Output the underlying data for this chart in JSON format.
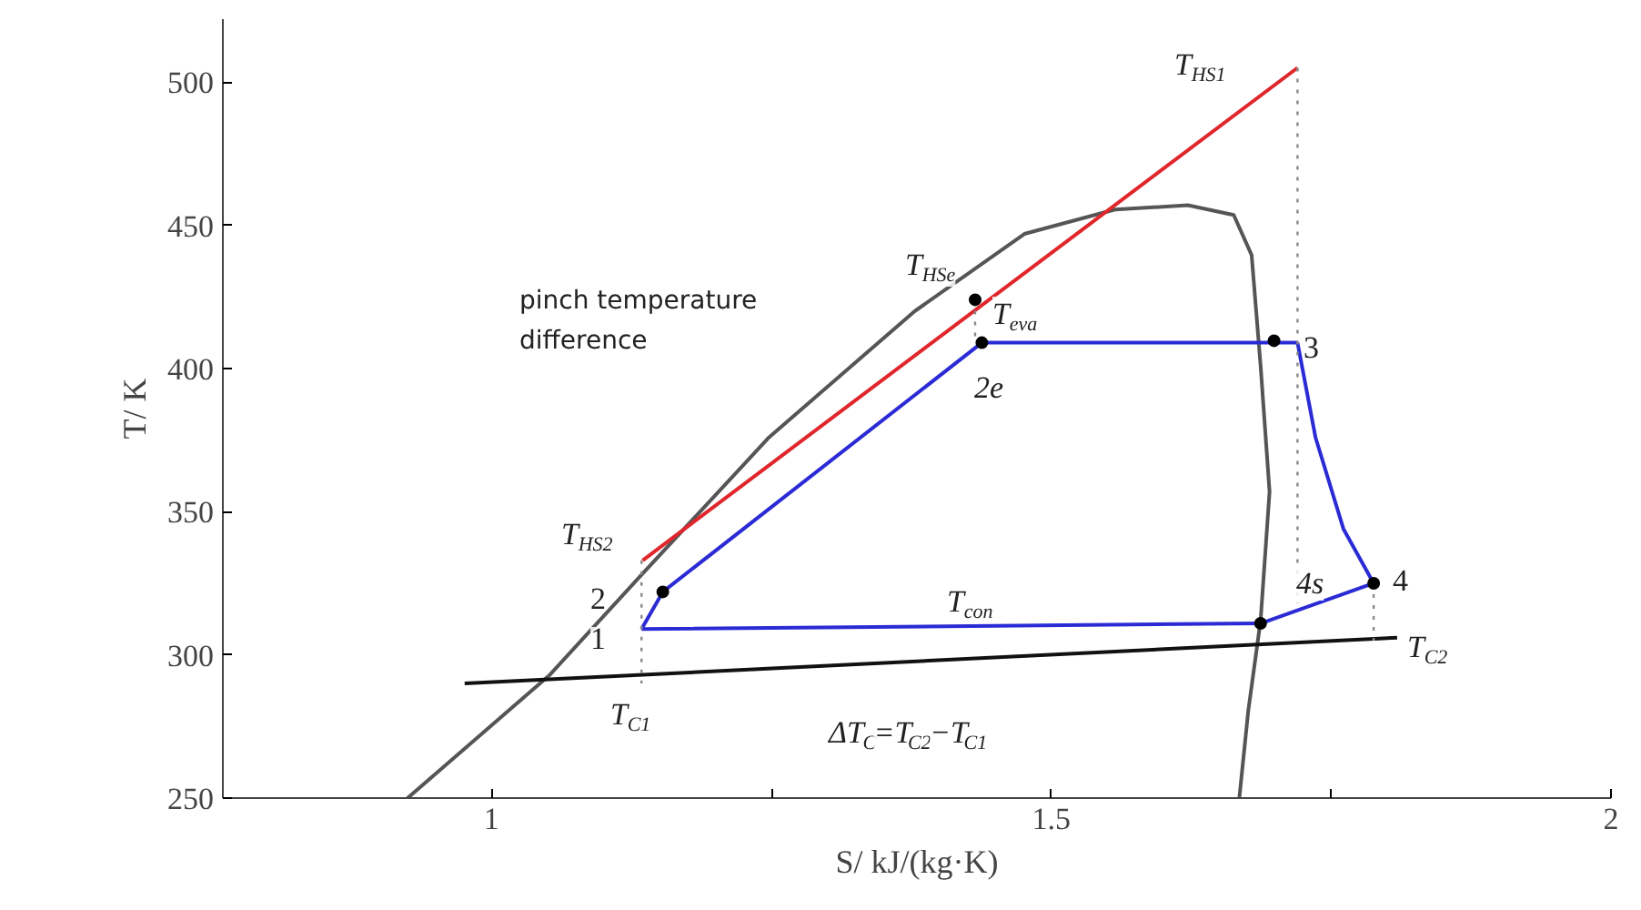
{
  "chart_data": {
    "type": "line",
    "xlabel": "S/ kJ/(kg·K)",
    "ylabel": "T/ K",
    "xlim": [
      0.76,
      2.0
    ],
    "ylim": [
      250,
      522
    ],
    "xticks": [
      1.0,
      {
        "value": 1.25,
        "label": null
      },
      1.5,
      {
        "value": 1.75,
        "label": null
      },
      2.0
    ],
    "yticks": [
      250,
      300,
      350,
      400,
      450,
      500
    ],
    "grid": false,
    "series": [
      {
        "type": "line",
        "color": "#555555",
        "x": [
          0.925,
          1.052,
          1.134,
          1.248,
          1.378,
          1.476,
          1.557,
          1.622,
          1.663,
          1.679,
          1.687,
          1.695,
          1.687,
          1.676,
          1.668
        ],
        "values": [
          250,
          293,
          328,
          376,
          420,
          447,
          455.5,
          457,
          453.6,
          439.6,
          401,
          357,
          312,
          280.5,
          250
        ]
      },
      {
        "type": "line",
        "color": "#e0262b",
        "x": [
          1.135,
          1.72
        ],
        "values": [
          333,
          505
        ]
      },
      {
        "type": "line",
        "color": "#111111",
        "x": [
          0.976,
          1.809
        ],
        "values": [
          290,
          306
        ]
      },
      {
        "type": "line",
        "color": "#2b2bd6",
        "x": [
          1.134,
          1.153,
          1.438,
          1.72
        ],
        "values": [
          309,
          322,
          409,
          409
        ]
      },
      {
        "type": "line",
        "color": "#2b2bd6",
        "x": [
          1.72,
          1.736,
          1.761,
          1.788
        ],
        "values": [
          409,
          376,
          344,
          325
        ]
      },
      {
        "type": "line",
        "color": "#2b2bd6",
        "x": [
          1.134,
          1.687,
          1.788
        ],
        "values": [
          309,
          311,
          325
        ]
      },
      {
        "type": "line",
        "color": "#888888",
        "line_style": "dotted",
        "x": [
          1.72,
          1.72
        ],
        "values": [
          505,
          318
        ]
      },
      {
        "type": "line",
        "color": "#888888",
        "line_style": "dotted",
        "x": [
          1.134,
          1.134
        ],
        "values": [
          333,
          290
        ]
      },
      {
        "type": "line",
        "color": "#888888",
        "line_style": "dotted",
        "x": [
          1.788,
          1.788
        ],
        "values": [
          325,
          305
        ]
      },
      {
        "type": "line",
        "color": "#888888",
        "line_style": "dotted",
        "x": [
          1.432,
          1.432
        ],
        "values": [
          424,
          409
        ]
      },
      {
        "type": "scatter",
        "marker": "circle",
        "color": "#000000",
        "x": [
          1.153,
          1.438,
          1.699,
          1.788,
          1.687,
          1.432
        ],
        "values": [
          322,
          409,
          409.7,
          325,
          311,
          424
        ]
      }
    ],
    "annotations": [
      "T$_{HS1}$",
      "T$_{HSe}$",
      "pinch temperature difference",
      "T$_{eva}$",
      "3",
      "2e",
      "T$_{HS2}$",
      "2",
      "1",
      "T$_{con}$",
      "4s",
      "4",
      "T$_{C2}$",
      "T$_{C1}$",
      "ΔT$_{C}$=T$_{C2}$−T$_{C1}$"
    ]
  }
}
